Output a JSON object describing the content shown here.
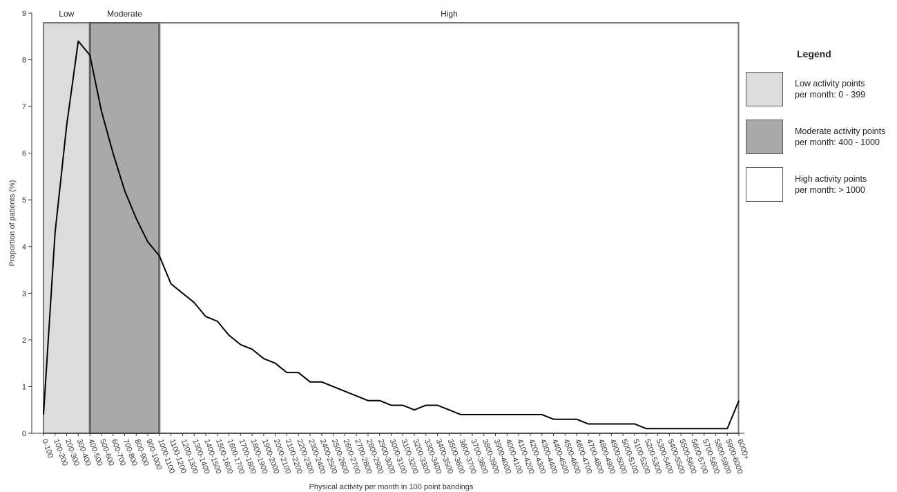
{
  "chart_data": {
    "type": "line",
    "title": "",
    "xlabel": "Physical activity per month in 100 point bandings",
    "ylabel": "Proportion of patients (%)",
    "ylim": [
      0,
      9
    ],
    "yticks": [
      0,
      1,
      2,
      3,
      4,
      5,
      6,
      7,
      8,
      9
    ],
    "categories": [
      "0-100",
      "100-200",
      "200-300",
      "300-400",
      "400-500",
      "500-600",
      "600-700",
      "700-800",
      "800-900",
      "900-1000",
      "1000-1100",
      "1100-1200",
      "1200-1300",
      "1300-1400",
      "1400-1500",
      "1500-1600",
      "1600-1700",
      "1700-1800",
      "1800-1900",
      "1900-2000",
      "2000-2100",
      "2100-2200",
      "2200-2300",
      "2300-2400",
      "2400-2500",
      "2500-2600",
      "2600-2700",
      "2700-2800",
      "2800-2900",
      "2900-3000",
      "3000-3100",
      "3100-3200",
      "3200-3300",
      "3300-3400",
      "3400-3500",
      "3500-3600",
      "3600-3700",
      "3700-3800",
      "3800-3900",
      "3900-4000",
      "4000-4100",
      "4100-4200",
      "4200-4300",
      "4300-4400",
      "4400-4500",
      "4500-4600",
      "4600-4700",
      "4700-4800",
      "4800-4900",
      "4900-5000",
      "5000-5100",
      "5100-5200",
      "5200-5300",
      "5300-5400",
      "5400-5500",
      "5500-5600",
      "5600-5700",
      "5700-5800",
      "5800-5900",
      "5900-6000",
      "6000+"
    ],
    "series": [
      {
        "name": "",
        "color": "#000000",
        "values": [
          0.4,
          4.3,
          6.6,
          8.4,
          8.1,
          6.9,
          6.0,
          5.2,
          4.6,
          4.1,
          3.8,
          3.2,
          3.0,
          2.8,
          2.5,
          2.4,
          2.1,
          1.9,
          1.8,
          1.6,
          1.5,
          1.3,
          1.3,
          1.1,
          1.1,
          1.0,
          0.9,
          0.8,
          0.7,
          0.7,
          0.6,
          0.6,
          0.5,
          0.6,
          0.6,
          0.5,
          0.4,
          0.4,
          0.4,
          0.4,
          0.4,
          0.4,
          0.4,
          0.4,
          0.3,
          0.3,
          0.3,
          0.2,
          0.2,
          0.2,
          0.2,
          0.2,
          0.1,
          0.1,
          0.1,
          0.1,
          0.1,
          0.1,
          0.1,
          0.1,
          0.7
        ]
      }
    ],
    "bands": [
      {
        "label": "Low",
        "start": "0-100",
        "end": "400-500",
        "fill": "#dcdcdc",
        "stroke": "#777777"
      },
      {
        "label": "Moderate",
        "start": "400-500",
        "end": "1000-1100",
        "fill": "#a9a9a9",
        "stroke": "#555555"
      },
      {
        "label": "High",
        "start": "1000-1100",
        "end": "6000+",
        "fill": "#ffffff",
        "stroke": "#777777"
      }
    ],
    "grid": false,
    "legend_position": "right"
  },
  "legend": {
    "title": "Legend",
    "items": [
      {
        "line1": "Low activity points",
        "line2": "per month: 0 - 399",
        "color": "#dcdcdc"
      },
      {
        "line1": "Moderate activity points",
        "line2": "per month: 400 - 1000",
        "color": "#a9a9a9"
      },
      {
        "line1": "High activity points",
        "line2": "per month: > 1000",
        "color": "#ffffff"
      }
    ]
  }
}
